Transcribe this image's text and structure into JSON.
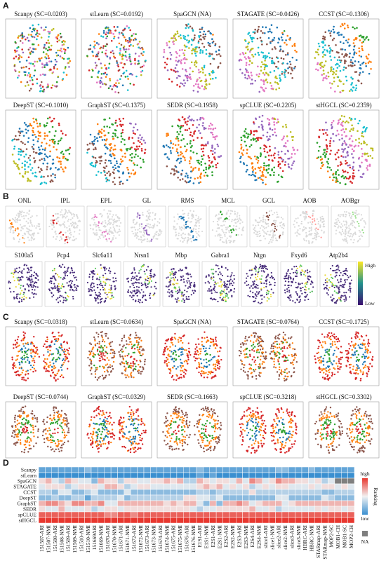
{
  "panel_a": {
    "label": "A",
    "titles": [
      "Scanpy (SC=0.0203)",
      "stLearn (SC=0.0192)",
      "SpaGCN (NA)",
      "STAGATE (SC=0.0426)",
      "CCST (SC=0.1306)",
      "DeepST (SC=0.1010)",
      "GraphST (SC=0.1375)",
      "SEDR (SC=0.1958)",
      "spCLUE (SC=0.2205)",
      "stHGCL (SC=0.2359)"
    ]
  },
  "panel_b": {
    "label": "B",
    "layers": [
      "ONL",
      "IPL",
      "EPL",
      "GL",
      "RMS",
      "MCL",
      "GCL",
      "AOB",
      "AOBgr"
    ],
    "genes": [
      "S100a5",
      "Pcp4",
      "Slc6a11",
      "Nrsn1",
      "Mbp",
      "Gabra1",
      "Ntgn",
      "Fxyd6",
      "Atp2b4"
    ],
    "high": "High",
    "low": "Low"
  },
  "panel_c": {
    "label": "C",
    "titles": [
      "Scanpy (SC=0.0318)",
      "stLearn (SC=0.0634)",
      "SpaGCN (NA)",
      "STAGATE (SC=0.0764)",
      "CCST (SC=0.1725)",
      "DeepST (SC=0.0744)",
      "GraphST (SC=0.0329)",
      "SEDR (SC=0.1663)",
      "spCLUE (SC=0.3218)",
      "stHGCL (SC=0.3302)"
    ]
  },
  "chart_data": {
    "type": "heatmap",
    "label": "D",
    "rows": [
      "Scanpy",
      "stLearn",
      "SpaGCN",
      "STAGATE",
      "CCST",
      "DeepST",
      "GraphST",
      "SEDR",
      "spCLUE",
      "stHGCL"
    ],
    "columns": [
      "151507-ARI",
      "151507-NMI",
      "151508-ARI",
      "151508-NMI",
      "151509-ARI",
      "151509-NMI",
      "151510-ARI",
      "151510-NMI",
      "151669ARI",
      "151669-NMI",
      "151670-ARI",
      "151670-NMI",
      "151671-ARI",
      "151671-NMI",
      "151672-ARI",
      "151672-NMI",
      "151673-ARI",
      "151673-NMI",
      "151674-ARI",
      "151674-NMI",
      "151675-ARI",
      "151675-NMI",
      "151676-ARI",
      "151676-NMI",
      "E1S1-ARI",
      "E1S1-NMI",
      "E2S1-ARI",
      "E2S1-NMI",
      "E2S2-ARI",
      "E2S2-NMI",
      "E2S3-ARI",
      "E2S3-NMI",
      "E2S4-ARI",
      "E2S4-NMI",
      "slice1-ARI",
      "slice1-NMI",
      "slice2-ARI",
      "slice2-NMI",
      "slice3-ARI",
      "slice3-NMI",
      "HBRC-ARI",
      "HBRC-NMI",
      "STARmap-ARI",
      "STARmap-NMI",
      "MOP2-SC",
      "MOB1-CH",
      "MOB1-SC",
      "MOP2-CH"
    ],
    "values": [
      [
        2,
        2,
        2,
        2,
        2,
        2,
        2,
        3,
        2,
        2,
        2,
        2,
        2,
        2,
        2,
        2,
        2,
        2,
        2,
        2,
        2,
        2,
        2,
        2,
        3,
        2,
        2,
        2,
        2,
        2,
        2,
        2,
        2,
        2,
        2,
        2,
        3,
        3,
        2,
        2,
        2,
        3,
        2,
        2,
        2,
        2,
        2,
        2
      ],
      [
        1,
        1,
        1,
        1,
        1,
        1,
        1,
        1,
        1,
        1,
        1,
        1,
        1,
        1,
        1,
        1,
        1,
        1,
        1,
        1,
        1,
        1,
        1,
        1,
        2,
        1,
        2,
        1,
        1,
        1,
        1,
        1,
        1,
        1,
        1,
        1,
        1,
        1,
        1,
        1,
        1,
        1,
        1,
        1,
        1,
        1,
        1,
        1
      ],
      [
        6,
        7,
        5,
        4,
        7,
        6,
        5,
        5,
        3,
        7,
        6,
        6,
        4,
        6,
        6,
        5,
        5,
        6,
        6,
        7,
        6,
        7,
        4,
        4,
        7,
        6,
        5,
        6,
        6,
        5,
        7,
        5,
        8,
        7,
        5,
        6,
        8,
        7,
        7,
        6,
        6,
        5,
        6,
        4,
        5,
        null,
        null,
        null
      ],
      [
        5,
        6,
        6,
        6,
        4,
        5,
        6,
        6,
        6,
        5,
        7,
        7,
        6,
        4,
        5,
        6,
        6,
        5,
        5,
        5,
        5,
        5,
        5,
        5,
        6,
        7,
        6,
        7,
        5,
        6,
        5,
        6,
        4,
        5,
        6,
        5,
        6,
        6,
        5,
        5,
        5,
        6,
        5,
        6,
        6,
        5,
        6,
        5
      ],
      [
        4,
        4,
        3,
        5,
        5,
        3,
        3,
        4,
        5,
        3,
        3,
        3,
        3,
        5,
        3,
        3,
        3,
        3,
        3,
        3,
        3,
        3,
        3,
        3,
        4,
        4,
        3,
        4,
        4,
        4,
        4,
        4,
        6,
        4,
        4,
        4,
        4,
        4,
        4,
        4,
        4,
        4,
        4,
        3,
        3,
        4,
        4,
        4
      ],
      [
        3,
        3,
        4,
        3,
        3,
        4,
        4,
        2,
        4,
        4,
        4,
        4,
        5,
        3,
        4,
        4,
        4,
        4,
        4,
        4,
        4,
        4,
        6,
        6,
        5,
        5,
        4,
        5,
        3,
        3,
        3,
        3,
        3,
        3,
        3,
        3,
        5,
        5,
        3,
        3,
        3,
        3,
        3,
        5,
        4,
        3,
        3,
        3
      ],
      [
        7,
        8,
        8,
        7,
        6,
        8,
        8,
        7,
        7,
        8,
        5,
        5,
        7,
        7,
        7,
        7,
        7,
        7,
        7,
        6,
        7,
        6,
        7,
        7,
        5,
        3,
        7,
        3,
        7,
        7,
        8,
        7,
        5,
        6,
        7,
        7,
        7,
        5,
        6,
        7,
        7,
        7,
        7,
        7,
        7,
        7,
        7,
        7
      ],
      [
        6,
        5,
        5,
        7,
        5,
        5,
        5,
        6,
        4,
        5,
        6,
        6,
        5,
        6,
        6,
        6,
        6,
        6,
        6,
        6,
        6,
        6,
        6,
        5,
        4,
        5,
        5,
        6,
        6,
        6,
        6,
        6,
        7,
        5,
        5,
        6,
        4,
        5,
        5,
        5,
        5,
        5,
        6,
        5,
        6,
        6,
        5,
        6
      ],
      [
        9,
        9,
        9,
        9,
        9,
        9,
        9,
        9,
        9,
        9,
        8,
        8,
        9,
        9,
        8,
        9,
        9,
        9,
        9,
        9,
        9,
        9,
        9,
        9,
        9,
        9,
        9,
        9,
        9,
        9,
        9,
        9,
        9,
        9,
        9,
        9,
        9,
        9,
        9,
        9,
        9,
        9,
        9,
        9,
        9,
        9,
        9,
        9
      ],
      [
        10,
        10,
        10,
        10,
        10,
        10,
        10,
        10,
        10,
        10,
        10,
        10,
        10,
        10,
        10,
        10,
        10,
        10,
        10,
        10,
        10,
        10,
        10,
        10,
        10,
        10,
        10,
        10,
        10,
        10,
        10,
        10,
        10,
        10,
        10,
        10,
        10,
        10,
        10,
        10,
        10,
        10,
        10,
        10,
        10,
        10,
        10,
        10
      ]
    ],
    "clim": [
      1,
      10
    ],
    "colors": [
      "#3a8fd0",
      "#f2f2f2",
      "#e8372e"
    ],
    "na_color": "#7f7f7f",
    "legend_high": "high",
    "legend_low": "low",
    "legend_title": "Ranking",
    "legend_na": "NA"
  }
}
